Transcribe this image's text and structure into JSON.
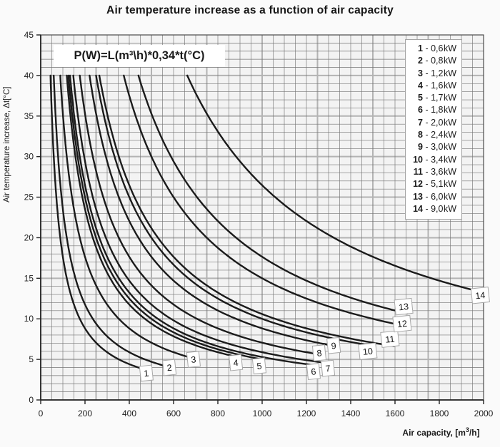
{
  "chart_data": {
    "type": "line",
    "title": "Air temperature increase as a function of air capacity",
    "formula": "P(W)=L(m³\\h)*0,34*t(°C)",
    "model": "t(C) = P(W) / (0.34 * L(m3/h)); every curve is plotted from t = 40 down to its numbered label",
    "coefficient": 0.34,
    "curve_start_t": 40,
    "xlabel": {
      "prefix": "Air capacity, [m",
      "sup": "3",
      "suffix": "/h]"
    },
    "ylabel": "Air temperature increase, Δt[°C]",
    "x_axis": {
      "min": 0,
      "max": 2000,
      "tick_step": 200,
      "minor_grid_step": 50,
      "major_grid_step": 250,
      "tick_labels": [
        "0",
        "200",
        "400",
        "600",
        "800",
        "1000",
        "1200",
        "1400",
        "1600",
        "1800",
        "2000"
      ]
    },
    "y_axis": {
      "min": 0,
      "max": 45,
      "tick_step": 5,
      "minor_grid_step": 1,
      "major_grid_step": 5,
      "tick_labels": [
        "0",
        "5",
        "10",
        "15",
        "20",
        "25",
        "30",
        "35",
        "40",
        "45"
      ]
    },
    "legend_unit": "kW",
    "legend_separator": " - ",
    "series": [
      {
        "num": "1",
        "kw": "0,6",
        "power_w": 600,
        "label_x": 477,
        "label_t": 3.3
      },
      {
        "num": "2",
        "kw": "0,8",
        "power_w": 800,
        "label_x": 581,
        "label_t": 4.0
      },
      {
        "num": "3",
        "kw": "1,2",
        "power_w": 1200,
        "label_x": 690,
        "label_t": 5.0
      },
      {
        "num": "4",
        "kw": "1,6",
        "power_w": 1600,
        "label_x": 881,
        "label_t": 4.6
      },
      {
        "num": "5",
        "kw": "1,7",
        "power_w": 1700,
        "label_x": 987,
        "label_t": 4.2
      },
      {
        "num": "6",
        "kw": "1,8",
        "power_w": 1800,
        "label_x": 1232,
        "label_t": 3.5
      },
      {
        "num": "7",
        "kw": "2,0",
        "power_w": 2000,
        "label_x": 1297,
        "label_t": 3.9
      },
      {
        "num": "8",
        "kw": "2,4",
        "power_w": 2400,
        "label_x": 1258,
        "label_t": 5.8
      },
      {
        "num": "9",
        "kw": "3,0",
        "power_w": 3000,
        "label_x": 1323,
        "label_t": 6.7
      },
      {
        "num": "10",
        "kw": "3,4",
        "power_w": 3400,
        "label_x": 1477,
        "label_t": 6.0
      },
      {
        "num": "11",
        "kw": "3,6",
        "power_w": 3600,
        "label_x": 1577,
        "label_t": 7.5
      },
      {
        "num": "12",
        "kw": "5,1",
        "power_w": 5100,
        "label_x": 1632,
        "label_t": 9.4
      },
      {
        "num": "13",
        "kw": "6,0",
        "power_w": 6000,
        "label_x": 1639,
        "label_t": 11.5
      },
      {
        "num": "14",
        "kw": "9,0",
        "power_w": 9000,
        "label_x": 1985,
        "label_t": 12.9
      }
    ],
    "colors": {
      "page_bg": "#fafafa",
      "plot_bg": "#f3f3f3",
      "grid_minor": "#757575",
      "grid_major": "#b3b3b3",
      "border": "#4a4a4a",
      "axis": "#222222",
      "curve": "#1b1b1b",
      "label_box_bg": "#ffffff",
      "label_box_border": "#a8a8a8",
      "text": "#1c1c1c"
    }
  }
}
